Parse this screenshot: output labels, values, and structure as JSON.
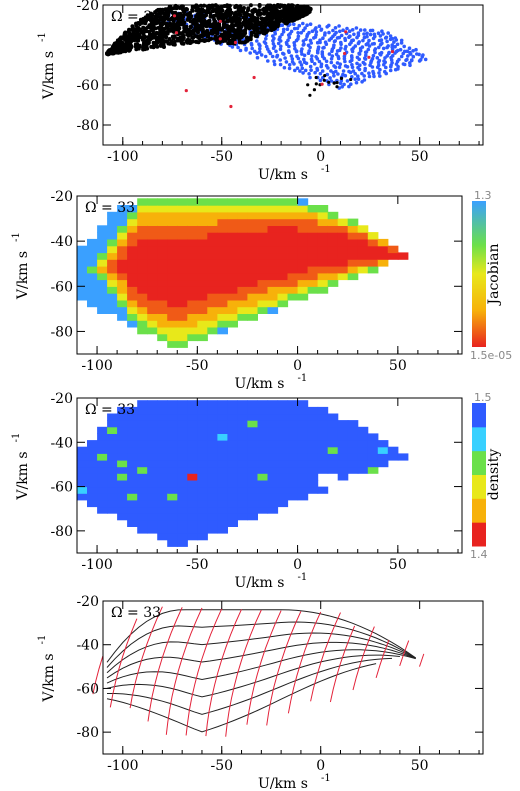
{
  "colors": {
    "blue": "#2f5bff",
    "black": "#000000",
    "red": "#e3233a",
    "frame": "#000000"
  },
  "panels": [
    {
      "id": "panel-1",
      "type": "scatter",
      "omega_label": "Ω = 33",
      "xlabel": "U/km s",
      "xlabel_sup": "-1",
      "ylabel": "V/km s",
      "ylabel_sup": "-1",
      "xticks": [
        "-100",
        "-50",
        "0",
        "50"
      ],
      "yticks": [
        "-20",
        "-40",
        "-60",
        "-80"
      ]
    },
    {
      "id": "panel-2",
      "type": "heatmap",
      "omega_label": "Ω = 33",
      "xlabel": "U/km s",
      "xlabel_sup": "-1",
      "ylabel": "V/km s",
      "ylabel_sup": "-1",
      "xticks": [
        "-100",
        "-50",
        "0",
        "50"
      ],
      "yticks": [
        "-20",
        "-40",
        "-60",
        "-80"
      ],
      "colorbar": {
        "label": "Jacobian",
        "max": "1.3",
        "min": "1.5e-05"
      }
    },
    {
      "id": "panel-3",
      "type": "heatmap",
      "omega_label": "Ω = 33",
      "xlabel": "U/km s",
      "xlabel_sup": "-1",
      "ylabel": "V/km s",
      "ylabel_sup": "-1",
      "xticks": [
        "-100",
        "-50",
        "0",
        "50"
      ],
      "yticks": [
        "-20",
        "-40",
        "-60",
        "-80"
      ],
      "colorbar": {
        "label": "density",
        "max": "1.5",
        "min": "1.4"
      }
    },
    {
      "id": "panel-4",
      "type": "line",
      "omega_label": "Ω = 33",
      "xlabel": "U/km s",
      "xlabel_sup": "-1",
      "ylabel": "V/km s",
      "ylabel_sup": "-1",
      "xticks": [
        "-100",
        "-50",
        "0",
        "50"
      ],
      "yticks": [
        "-20",
        "-40",
        "-60",
        "-80"
      ]
    }
  ],
  "chart_data": [
    {
      "type": "scatter",
      "xlim": [
        -110,
        82
      ],
      "ylim": [
        -90,
        -20
      ],
      "xticks": [
        -100,
        -50,
        0,
        50
      ],
      "yticks": [
        -20,
        -40,
        -60,
        -80
      ],
      "series": [
        {
          "color": "black",
          "region": "dense band across upper-left, roughly U -110 to 0, V -20 to -58"
        },
        {
          "color": "blue",
          "region": "fan of orbit streams, U -100 to 75, V -20 to -88"
        },
        {
          "color": "red",
          "region": "sparse points along edges of the band"
        }
      ]
    },
    {
      "type": "heatmap",
      "xlim": [
        -110,
        82
      ],
      "ylim": [
        -90,
        -20
      ],
      "xticks": [
        -100,
        -50,
        0,
        50
      ],
      "yticks": [
        -20,
        -40,
        -60,
        -80
      ],
      "colorbar": {
        "label": "Jacobian",
        "min": 1.5e-05,
        "max": 1.3
      }
    },
    {
      "type": "heatmap",
      "xlim": [
        -110,
        82
      ],
      "ylim": [
        -90,
        -20
      ],
      "xticks": [
        -100,
        -50,
        0,
        50
      ],
      "yticks": [
        -20,
        -40,
        -60,
        -80
      ],
      "colorbar": {
        "label": "density",
        "min": 1.4,
        "max": 1.5
      }
    },
    {
      "type": "line",
      "xlim": [
        -110,
        82
      ],
      "ylim": [
        -90,
        -20
      ],
      "xticks": [
        -100,
        -50,
        0,
        50
      ],
      "yticks": [
        -20,
        -40,
        -60,
        -80
      ],
      "series": [
        {
          "color": "black",
          "kind": "nested contours"
        },
        {
          "color": "red",
          "kind": "crossing grid lines"
        }
      ]
    }
  ]
}
